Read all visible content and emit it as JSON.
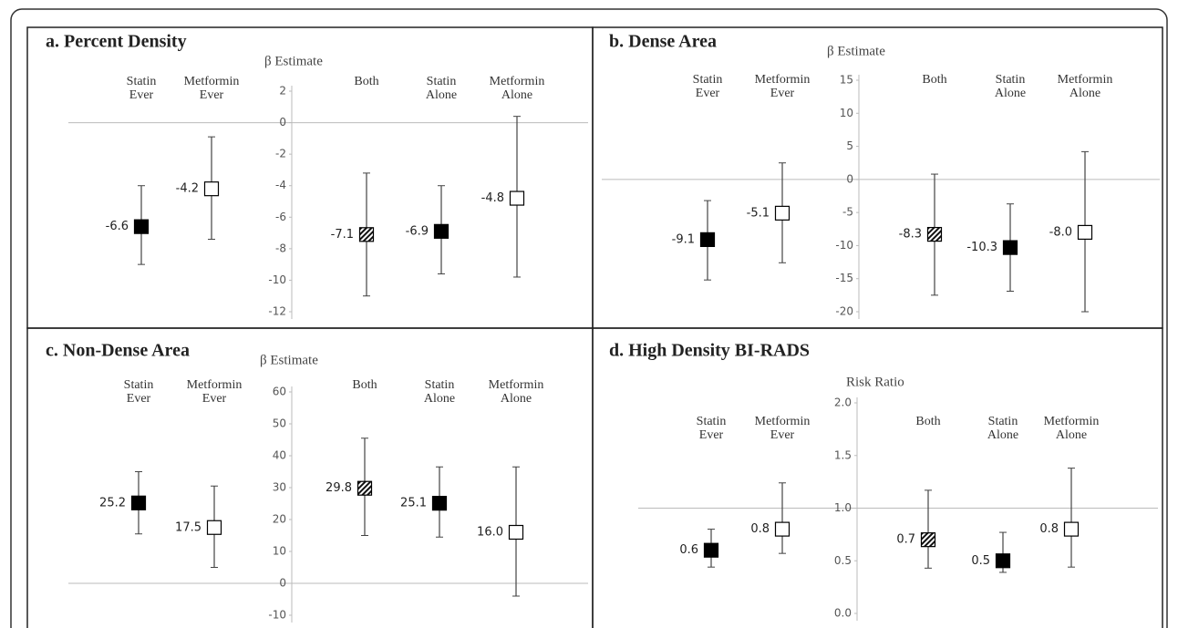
{
  "chart_data": [
    {
      "type": "errorbar",
      "title": "a. Percent Density",
      "y_label": "β Estimate",
      "categories": [
        "Statin Ever",
        "Metformin Ever",
        "Both",
        "Statin Alone",
        "Metformin Alone"
      ],
      "values": [
        -6.6,
        -4.2,
        -7.1,
        -6.9,
        -4.8
      ],
      "lower": [
        -9,
        -7.4,
        -11,
        -9.6,
        -9.8
      ],
      "upper": [
        -4,
        -0.9,
        -3.2,
        -4,
        0.4
      ],
      "markers": [
        "filled",
        "open",
        "hatched",
        "filled",
        "open"
      ],
      "ylim": [
        -12,
        2
      ],
      "yticks": [
        -12,
        -10,
        -8,
        -6,
        -4,
        -2,
        0,
        2
      ],
      "hline": 0
    },
    {
      "type": "errorbar",
      "title": "b. Dense Area",
      "y_label": "β Estimate",
      "categories": [
        "Statin Ever",
        "Metformin Ever",
        "Both",
        "Statin Alone",
        "Metformin Alone"
      ],
      "values": [
        -9.1,
        -5.1,
        -8.3,
        -10.3,
        -8
      ],
      "value_labels": [
        "-9.1",
        "-5.1",
        "-8.3",
        "-10.3",
        "-8.0"
      ],
      "lower": [
        -15.2,
        -12.6,
        -17.5,
        -16.9,
        -20
      ],
      "upper": [
        -3.2,
        2.5,
        0.8,
        -3.7,
        4.2
      ],
      "markers": [
        "filled",
        "open",
        "hatched",
        "filled",
        "open"
      ],
      "ylim": [
        -20,
        15
      ],
      "yticks": [
        -20,
        -15,
        -10,
        -5,
        0,
        5,
        10,
        15
      ],
      "hline": 0
    },
    {
      "type": "errorbar",
      "title": "c. Non-Dense Area",
      "y_label": "β Estimate",
      "categories": [
        "Statin Ever",
        "Metformin Ever",
        "Both",
        "Statin Alone",
        "Metformin Alone"
      ],
      "values": [
        25.2,
        17.5,
        29.8,
        25.1,
        16
      ],
      "value_labels": [
        "25.2",
        "17.5",
        "29.8",
        "25.1",
        "16.0"
      ],
      "lower": [
        15.5,
        5,
        15,
        14.5,
        -4
      ],
      "upper": [
        35,
        30.5,
        45.5,
        36.5,
        36.5
      ],
      "markers": [
        "filled",
        "open",
        "hatched",
        "filled",
        "open"
      ],
      "ylim": [
        -10,
        60
      ],
      "yticks": [
        -10,
        0,
        10,
        20,
        30,
        40,
        50,
        60
      ],
      "hline": 0
    },
    {
      "type": "errorbar",
      "title": "d. High Density BI-RADS",
      "y_label": "Risk Ratio",
      "categories": [
        "Statin Ever",
        "Metformin Ever",
        "Both",
        "Statin Alone",
        "Metformin Alone"
      ],
      "values": [
        0.6,
        0.8,
        0.7,
        0.5,
        0.8
      ],
      "lower": [
        0.44,
        0.57,
        0.43,
        0.39,
        0.44
      ],
      "upper": [
        0.8,
        1.24,
        1.17,
        0.77,
        1.38
      ],
      "markers": [
        "filled",
        "open",
        "hatched",
        "filled",
        "open"
      ],
      "ylim": [
        0,
        2
      ],
      "yticks": [
        {
          "value": 0,
          "label": "0.0"
        },
        0.5,
        {
          "value": 1,
          "label": "1.0"
        },
        1.5,
        {
          "value": 2,
          "label": "2.0"
        }
      ],
      "hline": 1
    }
  ]
}
